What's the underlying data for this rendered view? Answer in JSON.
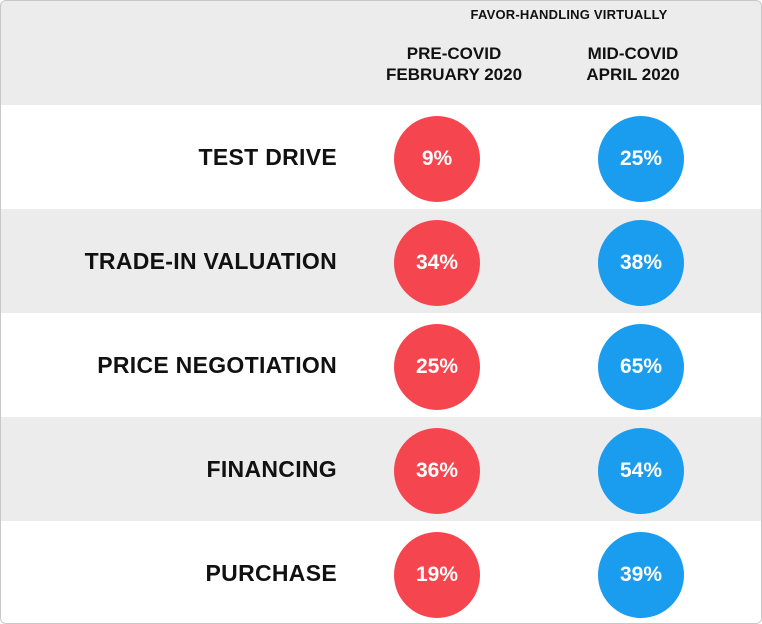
{
  "chart_data": {
    "type": "table",
    "title": "FAVOR-HANDLING VIRTUALLY",
    "columns": [
      {
        "line1": "PRE-COVID",
        "line2": "FEBRUARY 2020",
        "color": "#f5464f"
      },
      {
        "line1": "MID-COVID",
        "line2": "APRIL 2020",
        "color": "#1a9cef"
      }
    ],
    "rows": [
      {
        "label": "TEST DRIVE",
        "pre": "9%",
        "mid": "25%"
      },
      {
        "label": "TRADE-IN VALUATION",
        "pre": "34%",
        "mid": "38%"
      },
      {
        "label": "PRICE NEGOTIATION",
        "pre": "25%",
        "mid": "65%"
      },
      {
        "label": "FINANCING",
        "pre": "36%",
        "mid": "54%"
      },
      {
        "label": "PURCHASE",
        "pre": "19%",
        "mid": "39%"
      }
    ],
    "values": {
      "pre_covid": [
        9,
        34,
        25,
        36,
        19
      ],
      "mid_covid": [
        25,
        38,
        65,
        54,
        39
      ]
    }
  }
}
